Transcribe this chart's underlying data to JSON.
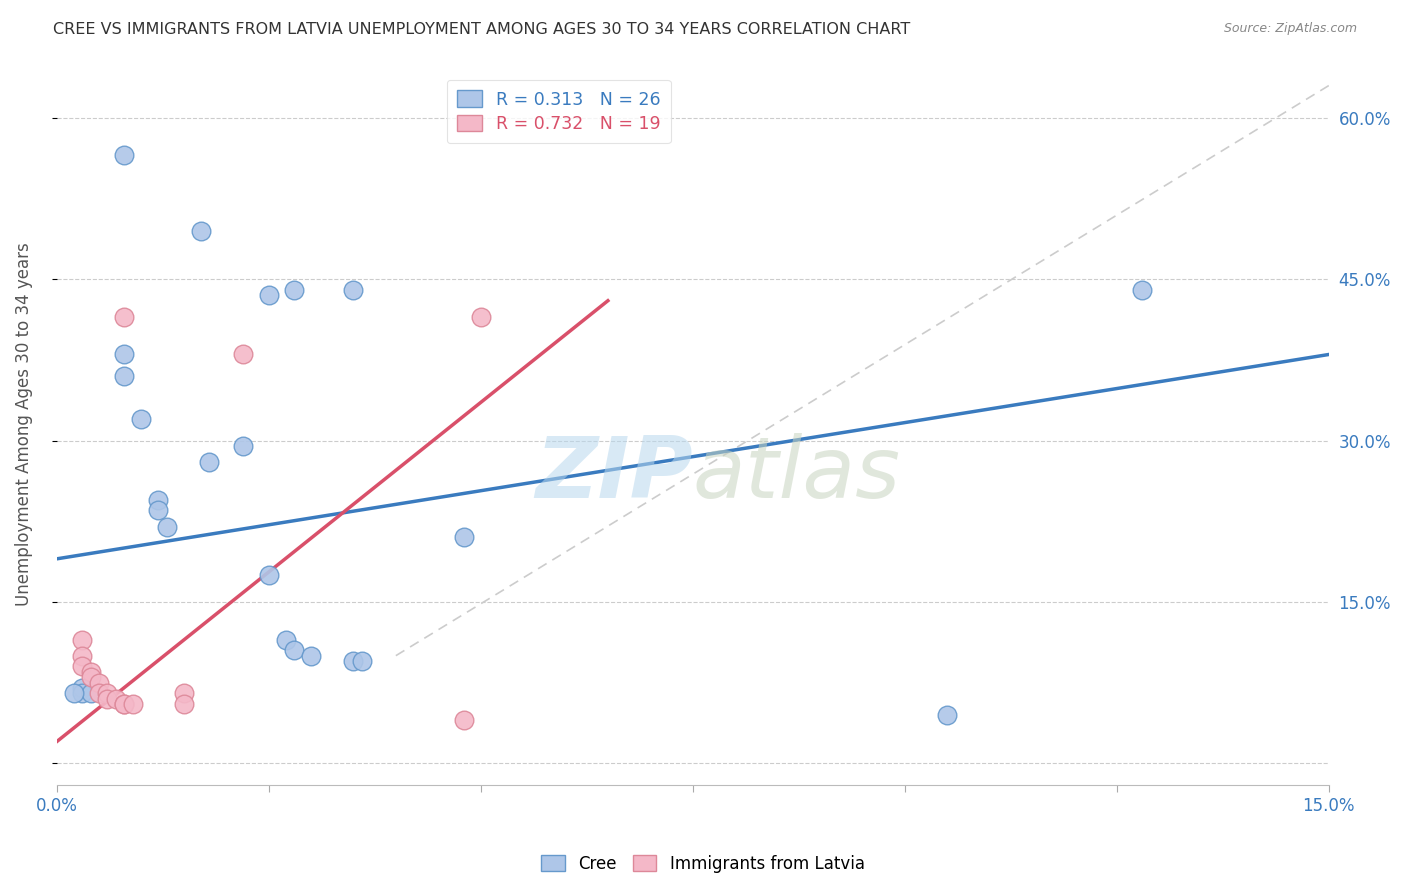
{
  "title": "CREE VS IMMIGRANTS FROM LATVIA UNEMPLOYMENT AMONG AGES 30 TO 34 YEARS CORRELATION CHART",
  "source": "Source: ZipAtlas.com",
  "ylabel": "Unemployment Among Ages 30 to 34 years",
  "xlim": [
    0.0,
    0.15
  ],
  "ylim": [
    -0.02,
    0.65
  ],
  "xticks": [
    0.0,
    0.025,
    0.05,
    0.075,
    0.1,
    0.125,
    0.15
  ],
  "ytick_labels": [
    "",
    "15.0%",
    "30.0%",
    "45.0%",
    "60.0%"
  ],
  "ytick_values": [
    0.0,
    0.15,
    0.3,
    0.45,
    0.6
  ],
  "xtick_labels": [
    "0.0%",
    "",
    "",
    "",
    "",
    "",
    "15.0%"
  ],
  "legend_r1": "R = 0.313   N = 26",
  "legend_r2": "R = 0.732   N = 19",
  "cree_color": "#aec6e8",
  "cree_edge": "#6699cc",
  "latvia_color": "#f4b8c8",
  "latvia_edge": "#dd8899",
  "cree_scatter": [
    [
      0.008,
      0.565
    ],
    [
      0.017,
      0.495
    ],
    [
      0.025,
      0.435
    ],
    [
      0.028,
      0.44
    ],
    [
      0.035,
      0.44
    ],
    [
      0.008,
      0.38
    ],
    [
      0.008,
      0.36
    ],
    [
      0.01,
      0.32
    ],
    [
      0.022,
      0.295
    ],
    [
      0.018,
      0.28
    ],
    [
      0.012,
      0.245
    ],
    [
      0.012,
      0.235
    ],
    [
      0.013,
      0.22
    ],
    [
      0.048,
      0.21
    ],
    [
      0.025,
      0.175
    ],
    [
      0.027,
      0.115
    ],
    [
      0.028,
      0.105
    ],
    [
      0.03,
      0.1
    ],
    [
      0.035,
      0.095
    ],
    [
      0.036,
      0.095
    ],
    [
      0.003,
      0.07
    ],
    [
      0.003,
      0.065
    ],
    [
      0.004,
      0.065
    ],
    [
      0.002,
      0.065
    ],
    [
      0.128,
      0.44
    ],
    [
      0.105,
      0.045
    ]
  ],
  "latvia_scatter": [
    [
      0.008,
      0.415
    ],
    [
      0.022,
      0.38
    ],
    [
      0.05,
      0.415
    ],
    [
      0.003,
      0.115
    ],
    [
      0.003,
      0.1
    ],
    [
      0.003,
      0.09
    ],
    [
      0.004,
      0.085
    ],
    [
      0.004,
      0.08
    ],
    [
      0.005,
      0.075
    ],
    [
      0.005,
      0.065
    ],
    [
      0.006,
      0.065
    ],
    [
      0.006,
      0.06
    ],
    [
      0.007,
      0.06
    ],
    [
      0.008,
      0.055
    ],
    [
      0.008,
      0.055
    ],
    [
      0.009,
      0.055
    ],
    [
      0.015,
      0.065
    ],
    [
      0.015,
      0.055
    ],
    [
      0.048,
      0.04
    ]
  ],
  "cree_line_x": [
    0.0,
    0.15
  ],
  "cree_line_y": [
    0.19,
    0.38
  ],
  "latvia_line_x": [
    0.0,
    0.065
  ],
  "latvia_line_y": [
    0.02,
    0.43
  ],
  "diagonal_line_x": [
    0.04,
    0.15
  ],
  "diagonal_line_y": [
    0.1,
    0.63
  ],
  "background_color": "#ffffff",
  "grid_color": "#cccccc",
  "title_color": "#333333",
  "axis_label_color": "#555555",
  "cree_line_color": "#3a7bbf",
  "latvia_line_color": "#d9506a",
  "watermark_zip": "ZIP",
  "watermark_atlas": "atlas",
  "watermark_color_zip": "#b8d8ee",
  "watermark_color_atlas": "#c8d4c0"
}
